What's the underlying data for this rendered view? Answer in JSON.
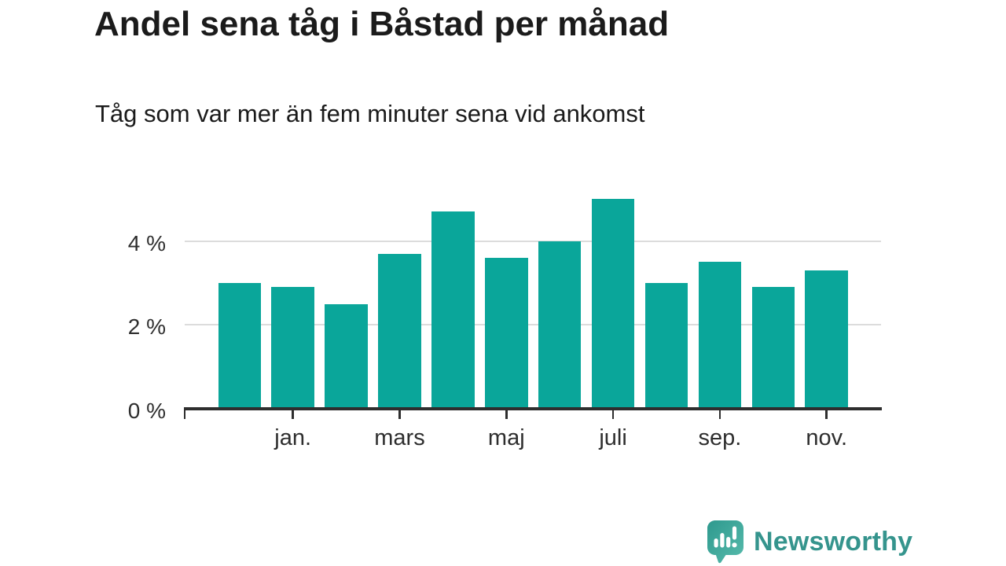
{
  "title": "Andel sena tåg i Båstad per månad",
  "subtitle": "Tåg som var mer än fem minuter sena vid ankomst",
  "chart_data": {
    "type": "bar",
    "categories": [
      "",
      "jan.",
      "",
      "mars",
      "",
      "maj",
      "",
      "juli",
      "",
      "sep.",
      "",
      "nov."
    ],
    "values": [
      3.0,
      2.9,
      2.5,
      3.7,
      4.7,
      3.6,
      4.0,
      5.0,
      3.0,
      3.5,
      2.9,
      3.3
    ],
    "unit": "%",
    "title": "Andel sena tåg i Båstad per månad",
    "subtitle": "Tåg som var mer än fem minuter sena vid ankomst",
    "xlabel": "",
    "ylabel": "",
    "ylim": [
      0,
      5.1
    ],
    "y_ticks": [
      {
        "value": 0,
        "label": "0 %"
      },
      {
        "value": 2,
        "label": "2 %"
      },
      {
        "value": 4,
        "label": "4 %"
      }
    ],
    "x_tick_labels": [
      {
        "bar_index": 1,
        "label": "jan."
      },
      {
        "bar_index": 3,
        "label": "mars"
      },
      {
        "bar_index": 5,
        "label": "maj"
      },
      {
        "bar_index": 7,
        "label": "juli"
      },
      {
        "bar_index": 9,
        "label": "sep."
      },
      {
        "bar_index": 11,
        "label": "nov."
      }
    ],
    "grid": "horizontal-only",
    "legend": "none",
    "series_color": "#0aa69a"
  },
  "colors": {
    "bar": "#0aa69a",
    "grid": "#dcdcdc",
    "axis": "#2e2e2e",
    "text": "#1b1b1b",
    "tick_text": "#2e2e2e",
    "brand_text": "#35948d",
    "badge_dark": "#2e998e",
    "badge_light": "#57bbac"
  },
  "footer": {
    "brand_name": "Newsworthy",
    "logo_icon": "bar-chart-exclamation-speech-bubble"
  }
}
